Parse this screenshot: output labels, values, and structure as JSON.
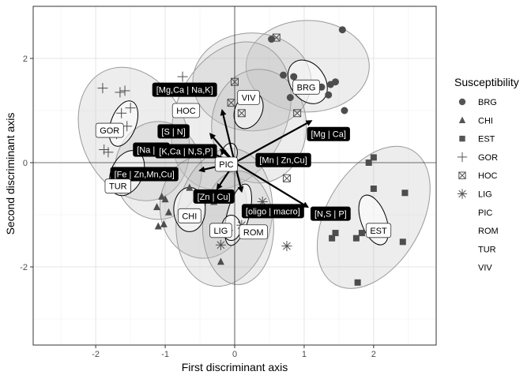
{
  "chart_data": {
    "type": "scatter",
    "title": "",
    "xlabel": "First discriminant axis",
    "ylabel": "Second discriminant axis",
    "xlim": [
      -2.9,
      2.9
    ],
    "ylim": [
      -3.5,
      3.0
    ],
    "x_ticks": [
      -2,
      -1,
      0,
      1,
      2
    ],
    "y_ticks": [
      -2,
      0,
      2
    ],
    "x_tick_labels": [
      "-2",
      "-1",
      "0",
      "1",
      "2"
    ],
    "y_tick_labels": [
      "-2",
      "0",
      "2"
    ],
    "grid": true,
    "reference_lines": {
      "x": 0,
      "y": 0
    },
    "legend": {
      "title": "Susceptibility",
      "placement": "right",
      "entries": [
        {
          "label": "BRG",
          "shape": "circle"
        },
        {
          "label": "CHI",
          "shape": "triangle"
        },
        {
          "label": "EST",
          "shape": "square"
        },
        {
          "label": "GOR",
          "shape": "plus"
        },
        {
          "label": "HOC",
          "shape": "square-cross"
        },
        {
          "label": "LIG",
          "shape": "asterisk"
        },
        {
          "label": "PIC",
          "shape": ""
        },
        {
          "label": "ROM",
          "shape": ""
        },
        {
          "label": "TUR",
          "shape": ""
        },
        {
          "label": "VIV",
          "shape": ""
        }
      ]
    },
    "colors": {
      "points": "#4d4d4d",
      "outer_ellipse_fill": "#bdbdbd",
      "outer_ellipse_stroke": "#9a9a9a",
      "inner_ellipse_fill": "#ffffff",
      "variable_arrow": "#000000",
      "variable_label_bg": "#000000",
      "variable_label_text": "#ffffff"
    },
    "series": [
      {
        "name": "BRG",
        "shape": "circle",
        "points": [
          [
            0.53,
            2.37
          ],
          [
            1.55,
            2.55
          ],
          [
            0.7,
            1.68
          ],
          [
            0.85,
            1.65
          ],
          [
            1.25,
            1.45
          ],
          [
            1.38,
            1.5
          ],
          [
            1.45,
            1.55
          ],
          [
            1.35,
            1.3
          ],
          [
            0.8,
            1.25
          ],
          [
            1.58,
            1.0
          ]
        ]
      },
      {
        "name": "CHI",
        "shape": "triangle",
        "points": [
          [
            -1.05,
            -0.65
          ],
          [
            -1.0,
            -0.7
          ],
          [
            -1.12,
            -0.85
          ],
          [
            -0.95,
            -0.95
          ],
          [
            -1.02,
            -1.18
          ],
          [
            -1.1,
            -1.22
          ],
          [
            -0.65,
            -0.48
          ],
          [
            -0.45,
            -0.6
          ],
          [
            -0.2,
            -1.9
          ],
          [
            -0.3,
            -0.75
          ]
        ]
      },
      {
        "name": "EST",
        "shape": "square",
        "points": [
          [
            1.93,
            0.0
          ],
          [
            2.0,
            0.1
          ],
          [
            2.45,
            -0.58
          ],
          [
            2.0,
            -0.5
          ],
          [
            1.45,
            -1.35
          ],
          [
            1.4,
            -1.45
          ],
          [
            1.75,
            -1.45
          ],
          [
            2.42,
            -1.52
          ],
          [
            1.77,
            -2.3
          ],
          [
            1.83,
            -1.35
          ]
        ]
      },
      {
        "name": "GOR",
        "shape": "plus",
        "points": [
          [
            -1.9,
            1.43
          ],
          [
            -1.65,
            1.35
          ],
          [
            -1.58,
            1.38
          ],
          [
            -1.5,
            1.05
          ],
          [
            -1.55,
            0.7
          ],
          [
            -1.88,
            0.25
          ],
          [
            -1.82,
            0.2
          ],
          [
            -0.75,
            1.65
          ],
          [
            -1.63,
            0.95
          ],
          [
            -1.7,
            0.55
          ]
        ]
      },
      {
        "name": "HOC",
        "shape": "square-cross",
        "points": [
          [
            0.6,
            2.4
          ],
          [
            0.0,
            1.55
          ],
          [
            0.9,
            0.95
          ],
          [
            0.75,
            -0.3
          ],
          [
            -0.05,
            1.15
          ],
          [
            0.1,
            0.95
          ]
        ]
      },
      {
        "name": "LIG",
        "shape": "asterisk",
        "points": [
          [
            -0.2,
            -1.58
          ],
          [
            0.75,
            -1.6
          ],
          [
            0.4,
            -0.75
          ],
          [
            0.1,
            -1.2
          ],
          [
            -0.1,
            -1.3
          ]
        ]
      }
    ],
    "group_centroids": [
      {
        "label": "BRG",
        "x": 1.03,
        "y": 1.45
      },
      {
        "label": "VIV",
        "x": 0.2,
        "y": 1.25
      },
      {
        "label": "HOC",
        "x": -0.7,
        "y": 1.0
      },
      {
        "label": "GOR",
        "x": -1.8,
        "y": 0.62
      },
      {
        "label": "TUR",
        "x": -1.68,
        "y": -0.45
      },
      {
        "label": "PIC",
        "x": -0.12,
        "y": -0.03
      },
      {
        "label": "CHI",
        "x": -0.65,
        "y": -1.02
      },
      {
        "label": "LIG",
        "x": -0.2,
        "y": -1.3
      },
      {
        "label": "ROM",
        "x": 0.27,
        "y": -1.33
      },
      {
        "label": "EST",
        "x": 2.07,
        "y": -1.3
      }
    ],
    "variables": [
      {
        "label": "[Mg,Ca | Na,K]",
        "x": -0.18,
        "y": 1.0,
        "label_x": -0.72,
        "label_y": 1.4
      },
      {
        "label": "[S | N]",
        "x": -0.35,
        "y": 0.55,
        "label_x": -0.88,
        "label_y": 0.6
      },
      {
        "label": "[Na | K]",
        "x": -0.55,
        "y": 0.3,
        "label_x": -1.2,
        "label_y": 0.25
      },
      {
        "label": "[K,Ca | N,S,P]",
        "x": -0.2,
        "y": 0.25,
        "label_x": -0.7,
        "label_y": 0.22
      },
      {
        "label": "[Fe | Zn,Mn,Cu]",
        "x": -0.5,
        "y": -0.15,
        "label_x": -1.3,
        "label_y": -0.22
      },
      {
        "label": "[Zn | Cu]",
        "x": -0.25,
        "y": -0.5,
        "label_x": -0.3,
        "label_y": -0.65
      },
      {
        "label": "[oligo | macro]",
        "x": 0.1,
        "y": -0.55,
        "label_x": 0.55,
        "label_y": -0.93
      },
      {
        "label": "[N,S | P]",
        "x": 1.05,
        "y": -0.85,
        "label_x": 1.38,
        "label_y": -0.98
      },
      {
        "label": "[Mn | Zn,Cu]",
        "x": 0.05,
        "y": -0.05,
        "label_x": 0.7,
        "label_y": 0.05
      },
      {
        "label": "[Mg | Ca]",
        "x": 1.1,
        "y": 0.8,
        "label_x": 1.35,
        "label_y": 0.55
      }
    ]
  }
}
